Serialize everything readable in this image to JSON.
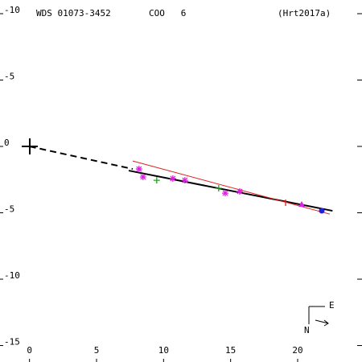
{
  "chart_data": {
    "type": "scatter",
    "title": "WDS 01073-3452",
    "subtitle": "COO   6",
    "reference": "(Hrt2017a)",
    "compass": {
      "east": "E",
      "north": "N"
    },
    "xlim": [
      -2.2,
      24.8
    ],
    "xticks": [
      0,
      5,
      10,
      15,
      20
    ],
    "ylim": [
      -11.03,
      16.24
    ],
    "yticks": [
      -10,
      -5,
      0,
      {
        "value": 5,
        "label": "-5"
      },
      {
        "value": 10,
        "label": "-10"
      },
      {
        "value": 15,
        "label": "-15"
      }
    ],
    "lines": [
      {
        "style": "dashed",
        "color": "#000000",
        "x": [
          0,
          7.7
        ],
        "y": [
          0,
          1.7
        ]
      },
      {
        "style": "solid",
        "color": "#000000",
        "x": [
          7.4,
          22.6
        ],
        "y": [
          1.82,
          4.85
        ]
      },
      {
        "style": "solid",
        "color": "#e02020",
        "x": [
          7.7,
          22.4
        ],
        "y": [
          1.1,
          5.1
        ]
      }
    ],
    "series": [
      {
        "marker": "asterisk",
        "color": "#e020e0",
        "x": [
          8.17,
          8.47,
          10.69,
          11.59,
          14.6,
          15.68
        ],
        "values": [
          1.7,
          2.3,
          2.42,
          2.55,
          3.52,
          3.39
        ]
      },
      {
        "marker": "plus",
        "color": "#20a020",
        "x": [
          9.49,
          14.11
        ],
        "values": [
          2.55,
          3.15
        ]
      },
      {
        "marker": "tick",
        "color": "#e02020",
        "x": [
          19.1
        ],
        "values": [
          4.24
        ]
      },
      {
        "marker": "triangle",
        "color": "#e020e0",
        "x": [
          20.3
        ],
        "values": [
          4.36
        ]
      },
      {
        "marker": "dot",
        "color": "#2020e0",
        "x": [
          21.8
        ],
        "values": [
          4.85
        ]
      }
    ]
  }
}
